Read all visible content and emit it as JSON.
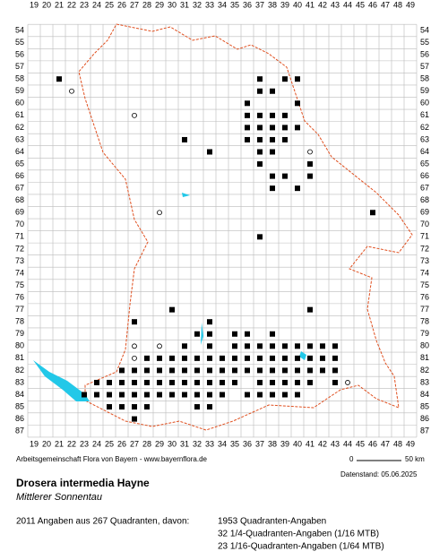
{
  "map": {
    "col_labels": [
      19,
      20,
      21,
      22,
      23,
      24,
      25,
      26,
      27,
      28,
      29,
      30,
      31,
      32,
      33,
      34,
      35,
      36,
      37,
      38,
      39,
      40,
      41,
      42,
      43,
      44,
      45,
      46,
      47,
      48,
      49
    ],
    "row_labels": [
      54,
      55,
      56,
      57,
      58,
      59,
      60,
      61,
      62,
      63,
      64,
      65,
      66,
      67,
      68,
      69,
      70,
      71,
      72,
      73,
      74,
      75,
      76,
      77,
      78,
      79,
      80,
      81,
      82,
      83,
      84,
      85,
      86,
      87
    ],
    "squares": [
      {
        "row": 58,
        "cols": [
          21,
          37,
          39,
          40
        ]
      },
      {
        "row": 59,
        "cols": [
          37,
          38
        ]
      },
      {
        "row": 60,
        "cols": [
          36,
          40
        ]
      },
      {
        "row": 61,
        "cols": [
          36,
          37,
          38,
          39
        ]
      },
      {
        "row": 62,
        "cols": [
          36,
          37,
          38,
          39,
          40
        ]
      },
      {
        "row": 63,
        "cols": [
          31,
          36,
          37,
          38,
          39
        ]
      },
      {
        "row": 64,
        "cols": [
          33,
          37,
          38
        ]
      },
      {
        "row": 65,
        "cols": [
          37,
          41
        ]
      },
      {
        "row": 66,
        "cols": [
          38,
          39,
          41
        ]
      },
      {
        "row": 67,
        "cols": [
          38,
          40
        ]
      },
      {
        "row": 69,
        "cols": [
          46
        ]
      },
      {
        "row": 71,
        "cols": [
          37
        ]
      },
      {
        "row": 77,
        "cols": [
          30,
          41
        ]
      },
      {
        "row": 78,
        "cols": [
          27,
          33
        ]
      },
      {
        "row": 79,
        "cols": [
          32,
          33,
          35,
          36,
          38
        ]
      },
      {
        "row": 80,
        "cols": [
          31,
          33,
          35,
          36,
          37,
          38,
          39,
          40,
          41,
          42,
          43
        ]
      },
      {
        "row": 81,
        "cols": [
          28,
          29,
          30,
          31,
          32,
          33,
          34,
          35,
          36,
          37,
          38,
          39,
          40,
          41,
          42,
          43
        ]
      },
      {
        "row": 82,
        "cols": [
          26,
          27,
          28,
          29,
          30,
          31,
          32,
          33,
          34,
          35,
          36,
          37,
          38,
          39,
          40,
          41,
          42,
          43
        ]
      },
      {
        "row": 83,
        "cols": [
          24,
          25,
          26,
          27,
          28,
          29,
          30,
          31,
          32,
          33,
          34,
          35,
          37,
          38,
          39,
          40,
          41,
          43
        ]
      },
      {
        "row": 84,
        "cols": [
          23,
          24,
          25,
          26,
          27,
          28,
          29,
          30,
          31,
          32,
          33,
          34,
          36,
          37,
          38,
          39,
          40
        ]
      },
      {
        "row": 85,
        "cols": [
          25,
          26,
          27,
          28,
          32,
          33
        ]
      },
      {
        "row": 86,
        "cols": [
          27
        ]
      }
    ],
    "circles": [
      {
        "row": 59,
        "cols": [
          22
        ]
      },
      {
        "row": 61,
        "cols": [
          27
        ]
      },
      {
        "row": 64,
        "cols": [
          41
        ]
      },
      {
        "row": 69,
        "cols": [
          29
        ]
      },
      {
        "row": 80,
        "cols": [
          27,
          29
        ]
      },
      {
        "row": 81,
        "cols": [
          27
        ]
      },
      {
        "row": 83,
        "cols": [
          44
        ]
      }
    ]
  },
  "credit": "Arbeitsgemeinschaft Flora von Bayern - www.bayernflora.de",
  "date": "Datenstand: 05.06.2025",
  "scale": {
    "start": "0",
    "end": "50 km"
  },
  "title": "Drosera intermedia Hayne",
  "subtitle": "Mittlerer Sonnentau",
  "summary": "2011 Angaben aus 267 Quadranten, davon:",
  "counts": [
    "1953 Quadranten-Angaben",
    "32 1/4-Quadranten-Angaben (1/16 MTB)",
    "23 1/16-Quadranten-Angaben (1/64 MTB)"
  ]
}
